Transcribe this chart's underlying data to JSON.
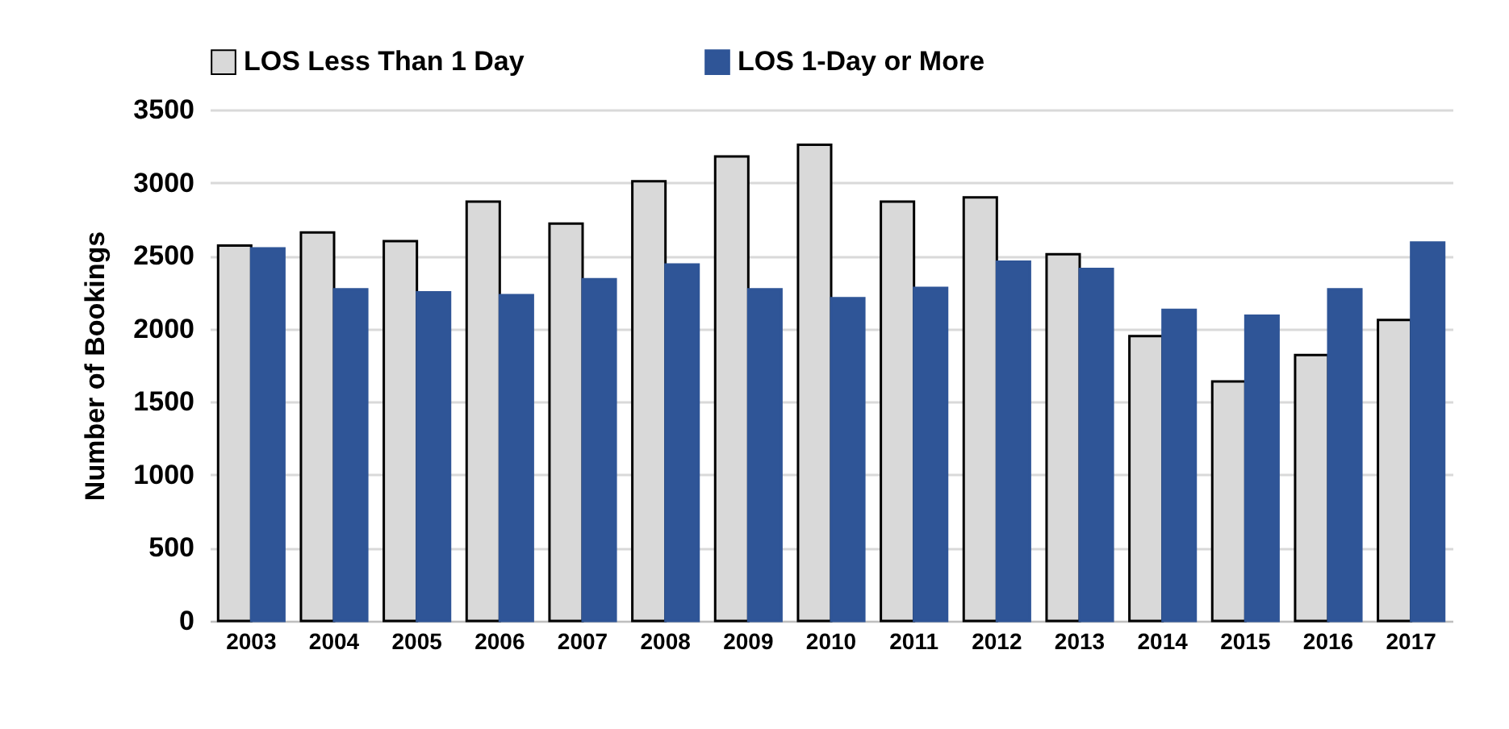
{
  "chart_data": {
    "type": "bar",
    "ylabel": "Number of Bookings",
    "categories": [
      "2003",
      "2004",
      "2005",
      "2006",
      "2007",
      "2008",
      "2009",
      "2010",
      "2011",
      "2012",
      "2013",
      "2014",
      "2015",
      "2016",
      "2017"
    ],
    "series": [
      {
        "name": "LOS Less Than 1 Day",
        "color": "#d9d9d9",
        "values": [
          2570,
          2660,
          2600,
          2870,
          2720,
          3010,
          3180,
          3260,
          2870,
          2900,
          2510,
          1950,
          1640,
          1820,
          2060
        ]
      },
      {
        "name": "LOS 1-Day or More",
        "color": "#2f5597",
        "values": [
          2550,
          2270,
          2250,
          2230,
          2340,
          2440,
          2270,
          2210,
          2280,
          2460,
          2410,
          2130,
          2090,
          2270,
          2590
        ]
      }
    ],
    "ylim": [
      0,
      3500
    ],
    "yticks": [
      0,
      500,
      1000,
      1500,
      2000,
      2500,
      3000,
      3500
    ],
    "grid": "y",
    "legend": "top"
  }
}
